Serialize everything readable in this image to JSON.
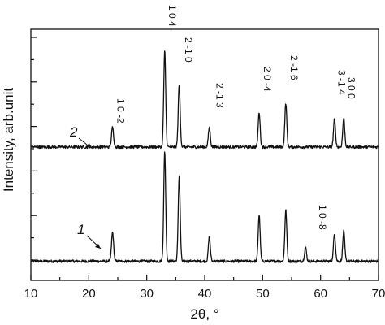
{
  "chart_data": {
    "type": "line",
    "xlabel": "2θ, °",
    "ylabel": "Intensity, arb.unit",
    "xlim": [
      10,
      70
    ],
    "xticks": [
      "10",
      "20",
      "30",
      "40",
      "50",
      "60",
      "70"
    ],
    "y_ticks_labeled": false,
    "grid": false,
    "legend": "none",
    "series": [
      {
        "name": "1",
        "baseline": 0.06,
        "noise": 0.012,
        "peaks": [
          {
            "x": 24.1,
            "h": 0.25,
            "w": 0.18
          },
          {
            "x": 33.1,
            "h": 0.95,
            "w": 0.17
          },
          {
            "x": 35.6,
            "h": 0.74,
            "w": 0.17
          },
          {
            "x": 40.8,
            "h": 0.21,
            "w": 0.17
          },
          {
            "x": 49.4,
            "h": 0.4,
            "w": 0.17
          },
          {
            "x": 54.0,
            "h": 0.44,
            "w": 0.17
          },
          {
            "x": 57.4,
            "h": 0.12,
            "w": 0.17
          },
          {
            "x": 62.4,
            "h": 0.24,
            "w": 0.17
          },
          {
            "x": 64.0,
            "h": 0.26,
            "w": 0.17
          }
        ]
      },
      {
        "name": "2",
        "baseline": 0.05,
        "noise": 0.012,
        "peaks": [
          {
            "x": 24.1,
            "h": 0.17,
            "w": 0.18
          },
          {
            "x": 33.1,
            "h": 0.83,
            "w": 0.17
          },
          {
            "x": 35.6,
            "h": 0.54,
            "w": 0.17
          },
          {
            "x": 40.8,
            "h": 0.17,
            "w": 0.17
          },
          {
            "x": 49.4,
            "h": 0.3,
            "w": 0.17
          },
          {
            "x": 54.0,
            "h": 0.38,
            "w": 0.17
          },
          {
            "x": 62.4,
            "h": 0.24,
            "w": 0.17
          },
          {
            "x": 64.0,
            "h": 0.25,
            "w": 0.17
          }
        ]
      }
    ],
    "peak_labels_top": [
      {
        "text": "1 0 4",
        "x": 33.3
      },
      {
        "text": "1 0 -2",
        "x": 24.4
      },
      {
        "text": "2 -1 0",
        "x": 36.1
      },
      {
        "text": "2 -1 3",
        "x": 41.5
      },
      {
        "text": "2 0 -4",
        "x": 49.7
      },
      {
        "text": "2 -1 6",
        "x": 54.3
      },
      {
        "text": "3 -1 4",
        "x": 62.5
      },
      {
        "text": "3 0 0",
        "x": 64.2
      }
    ],
    "peak_labels_bottom": [
      {
        "text": "1 0 -8",
        "x": 59.2
      }
    ],
    "curve_labels": [
      {
        "text": "1",
        "for": "series-1"
      },
      {
        "text": "2",
        "for": "series-2"
      }
    ]
  }
}
